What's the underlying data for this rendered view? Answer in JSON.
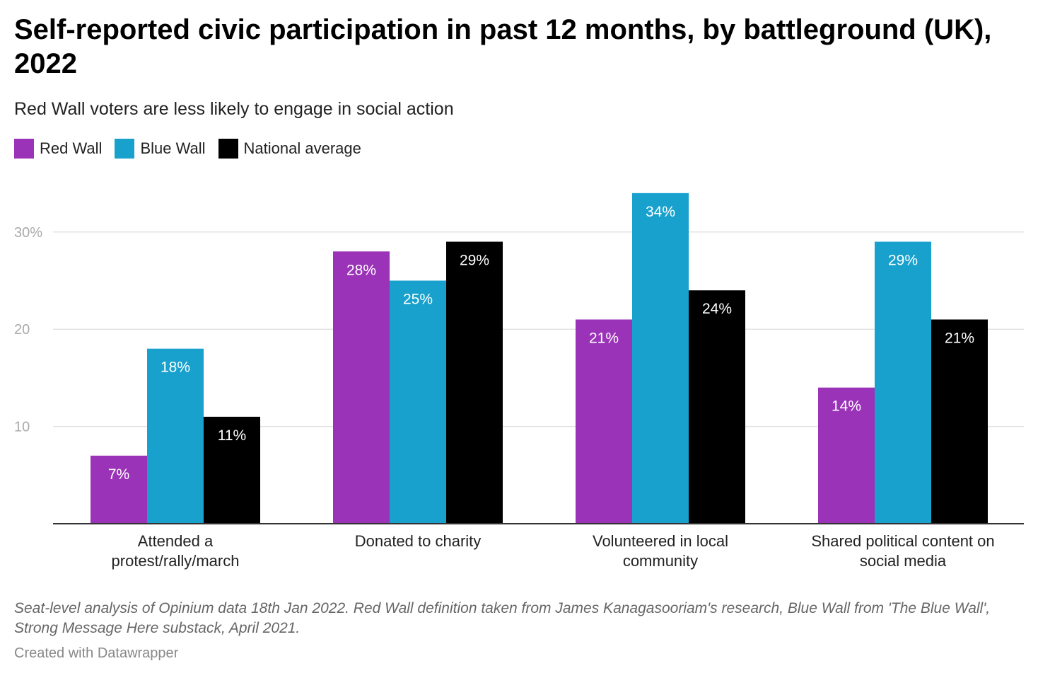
{
  "chart_data": {
    "type": "bar",
    "title": "Self-reported civic participation in past 12 months, by battleground (UK), 2022",
    "subtitle": "Red Wall voters are less likely to engage in social action",
    "categories": [
      [
        "Attended a",
        "protest/rally/march"
      ],
      [
        "Donated to charity"
      ],
      [
        "Volunteered in local",
        "community"
      ],
      [
        "Shared political content on",
        "social media"
      ]
    ],
    "series": [
      {
        "name": "Red Wall",
        "color": "#9b33b8",
        "values": [
          7,
          28,
          21,
          14
        ],
        "labels": [
          "7%",
          "28%",
          "21%",
          "14%"
        ]
      },
      {
        "name": "Blue Wall",
        "color": "#18a1cd",
        "values": [
          18,
          25,
          34,
          29
        ],
        "labels": [
          "18%",
          "25%",
          "34%",
          "29%"
        ]
      },
      {
        "name": "National average",
        "color": "#000000",
        "values": [
          11,
          29,
          24,
          21
        ],
        "labels": [
          "11%",
          "29%",
          "24%",
          "21%"
        ]
      }
    ],
    "yticks": [
      {
        "value": 10,
        "label": "10"
      },
      {
        "value": 20,
        "label": "20"
      },
      {
        "value": 30,
        "label": "30%"
      }
    ],
    "ylim": [
      0,
      35
    ],
    "grid": true,
    "legend_position": "top-left",
    "notes": "Seat-level analysis of Opinium data 18th Jan 2022. Red Wall definition taken from James Kanagasooriam's research, Blue Wall from 'The Blue Wall', Strong Message Here substack, April 2021.",
    "credit": "Created with Datawrapper"
  }
}
